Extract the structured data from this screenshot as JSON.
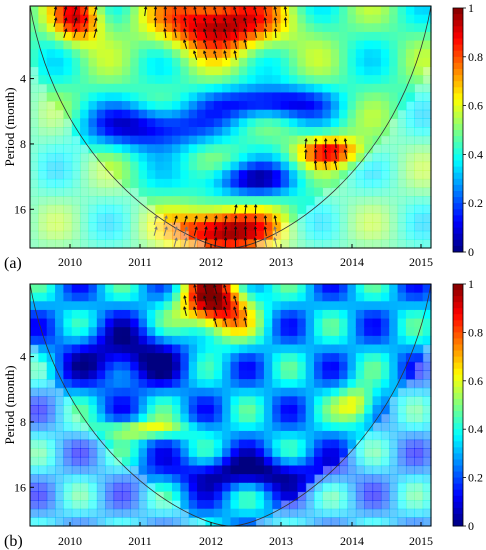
{
  "chart_data": [
    {
      "type": "heatmap",
      "panel_label": "(a)",
      "ylabel": "Period (month)",
      "x_ticks": [
        "2010",
        "2011",
        "2012",
        "2013",
        "2014",
        "2015"
      ],
      "y_ticks": [
        "4",
        "8",
        "16"
      ],
      "colorbar": {
        "min": 0,
        "max": 1,
        "ticks": [
          "0",
          "0.2",
          "0.4",
          "0.6",
          "0.8",
          "1"
        ]
      },
      "features": "high coherence (red) at 2-4 months during 2011.5-2013.2 and at 16-32 months around 2012; significance contours in black; phase arrows overlaid"
    },
    {
      "type": "heatmap",
      "panel_label": "(b)",
      "ylabel": "Period (month)",
      "x_ticks": [
        "2010",
        "2011",
        "2012",
        "2013",
        "2014",
        "2015"
      ],
      "y_ticks": [
        "4",
        "8",
        "16"
      ],
      "colorbar": {
        "min": 0,
        "max": 1,
        "ticks": [
          "0",
          "0.2",
          "0.4",
          "0.6",
          "0.8",
          "1"
        ]
      },
      "features": "high coherence (red) at 2-4 months around 2012-2013; mostly low coherence (blue) elsewhere inside the cone of influence; phase arrows overlaid"
    }
  ]
}
